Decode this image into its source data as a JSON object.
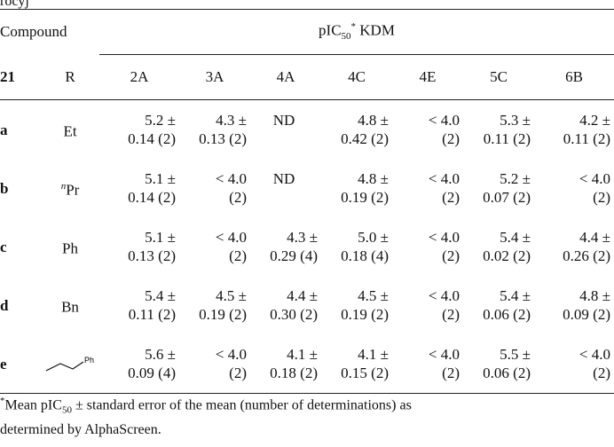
{
  "partial_top_text": "rocyj",
  "table": {
    "compound_header": "Compound",
    "pic_header_prefix": "pIC",
    "pic_header_sub": "50",
    "pic_header_sup": "*",
    "pic_header_suffix": " KDM",
    "col_21": "21",
    "col_r": "R",
    "kdm_columns": [
      "2A",
      "3A",
      "4A",
      "4C",
      "4E",
      "5C",
      "6B"
    ],
    "rows": [
      {
        "id": "a",
        "r": "Et",
        "r_sup": "",
        "r_ph": "",
        "cells": [
          [
            "5.2 ±",
            "0.14 (2)"
          ],
          [
            "4.3 ±",
            "0.13 (2)"
          ],
          [
            "ND",
            ""
          ],
          [
            "4.8 ±",
            "0.42 (2)"
          ],
          [
            "< 4.0",
            "(2)"
          ],
          [
            "5.3 ±",
            "0.11 (2)"
          ],
          [
            "4.2 ±",
            "0.11 (2)"
          ]
        ]
      },
      {
        "id": "b",
        "r": "Pr",
        "r_sup": "n",
        "r_ph": "",
        "cells": [
          [
            "5.1 ±",
            "0.14 (2)"
          ],
          [
            "< 4.0",
            "(2)"
          ],
          [
            "ND",
            ""
          ],
          [
            "4.8 ±",
            "0.19 (2)"
          ],
          [
            "< 4.0",
            "(2)"
          ],
          [
            "5.2 ±",
            "0.07 (2)"
          ],
          [
            "< 4.0",
            "(2)"
          ]
        ]
      },
      {
        "id": "c",
        "r": "Ph",
        "r_sup": "",
        "r_ph": "",
        "cells": [
          [
            "5.1 ±",
            "0.13 (2)"
          ],
          [
            "< 4.0",
            "(2)"
          ],
          [
            "4.3 ±",
            "0.29 (4)"
          ],
          [
            "5.0 ±",
            "0.18 (4)"
          ],
          [
            "< 4.0",
            "(2)"
          ],
          [
            "5.4 ±",
            "0.02 (2)"
          ],
          [
            "4.4 ±",
            "0.26 (2)"
          ]
        ]
      },
      {
        "id": "d",
        "r": "Bn",
        "r_sup": "",
        "r_ph": "",
        "cells": [
          [
            "5.4 ±",
            "0.11 (2)"
          ],
          [
            "4.5 ±",
            "0.19 (2)"
          ],
          [
            "4.4 ±",
            "0.30 (2)"
          ],
          [
            "4.5 ±",
            "0.19 (2)"
          ],
          [
            "< 4.0",
            "(2)"
          ],
          [
            "5.4 ±",
            "0.06 (2)"
          ],
          [
            "4.8 ±",
            "0.09 (2)"
          ]
        ]
      },
      {
        "id": "e",
        "r": "",
        "r_sup": "",
        "r_ph": "Ph",
        "cells": [
          [
            "5.6 ±",
            "0.09 (4)"
          ],
          [
            "< 4.0",
            "(2)"
          ],
          [
            "4.1 ±",
            "0.18 (2)"
          ],
          [
            "4.1 ±",
            "0.15 (2)"
          ],
          [
            "< 4.0",
            "(2)"
          ],
          [
            "5.5 ±",
            "0.06 (2)"
          ],
          [
            "< 4.0",
            "(2)"
          ]
        ]
      }
    ]
  },
  "footnote": {
    "marker": "*",
    "text_a": "Mean pIC",
    "text_sub": "50",
    "text_b": " ± standard error of the mean (number of determinations) as",
    "line2": "determined by AlphaScreen."
  }
}
